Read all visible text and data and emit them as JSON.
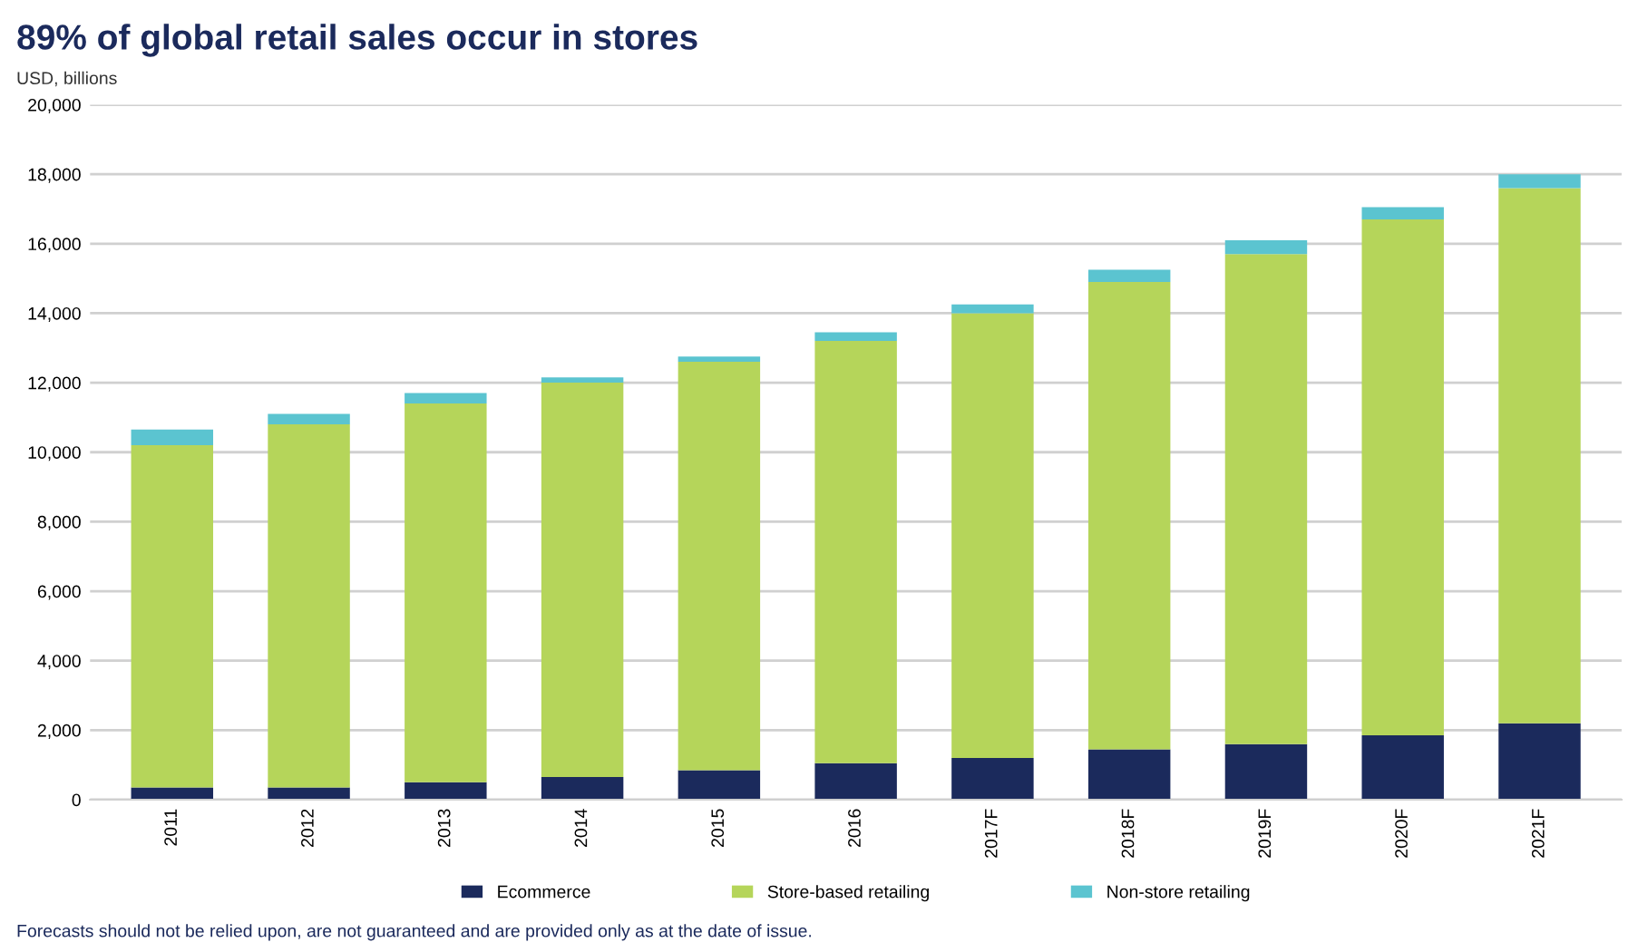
{
  "chart_data": {
    "type": "bar",
    "stacked": true,
    "title": "89% of global retail sales occur in stores",
    "subtitle": "USD, billions",
    "categories": [
      "2011",
      "2012",
      "2013",
      "2014",
      "2015",
      "2016",
      "2017F",
      "2018F",
      "2019F",
      "2020F",
      "2021F"
    ],
    "series": [
      {
        "name": "Ecommerce",
        "color": "#1b2a5c",
        "values": [
          350,
          350,
          500,
          650,
          850,
          1050,
          1200,
          1450,
          1600,
          1850,
          2200
        ]
      },
      {
        "name": "Store-based retailing",
        "color": "#b5d55a",
        "values": [
          9850,
          10450,
          10900,
          11350,
          11750,
          12150,
          12800,
          13450,
          14100,
          14850,
          15400
        ]
      },
      {
        "name": "Non-store retailing",
        "color": "#5bc4d0",
        "values": [
          450,
          300,
          300,
          150,
          150,
          250,
          250,
          350,
          400,
          350,
          400
        ]
      }
    ],
    "ylim": [
      0,
      20000
    ],
    "yticks": [
      {
        "value": 0,
        "label": "0"
      },
      {
        "value": 2000,
        "label": "2,000"
      },
      {
        "value": 4000,
        "label": "4,000"
      },
      {
        "value": 6000,
        "label": "6,000"
      },
      {
        "value": 8000,
        "label": "8,000"
      },
      {
        "value": 10000,
        "label": "10,000"
      },
      {
        "value": 12000,
        "label": "12,000"
      },
      {
        "value": 14000,
        "label": "14,000"
      },
      {
        "value": 16000,
        "label": "16,000"
      },
      {
        "value": 18000,
        "label": "18,000"
      },
      {
        "value": 20000,
        "label": "20,000"
      }
    ],
    "grid": "y",
    "legend": "bottom",
    "annotations": [
      "Forecasts should not be relied upon, are not guaranteed and are provided only as at the date of issue."
    ]
  }
}
